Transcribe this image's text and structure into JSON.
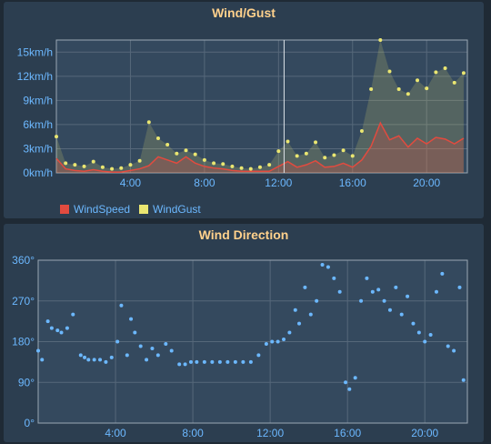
{
  "panels": {
    "wind": {
      "title": "Wind/Gust"
    },
    "direction": {
      "title": "Wind Direction"
    }
  },
  "colors": {
    "speed": "#e24b3f",
    "gust": "#eae671",
    "direction": "#6cb8ff",
    "axis_text": "#6cb8ff",
    "title": "#ffd18c"
  },
  "chart_data": [
    {
      "type": "line",
      "title": "Wind/Gust",
      "x_ticks": [
        "4:00",
        "8:00",
        "12:00",
        "16:00",
        "20:00"
      ],
      "y_ticks": [
        "0km/h",
        "3km/h",
        "6km/h",
        "9km/h",
        "12km/h",
        "15km/h"
      ],
      "xlim": [
        0,
        22.2
      ],
      "ylim": [
        0,
        16.5
      ],
      "grid": true,
      "legend": "bottom-left",
      "cursor_hour": 12.3,
      "series": [
        {
          "name": "WindSpeed",
          "kind": "area-line",
          "x": [
            0,
            0.5,
            1,
            1.5,
            2,
            2.5,
            3,
            3.5,
            4,
            4.5,
            5,
            5.5,
            6,
            6.5,
            7,
            7.5,
            8,
            8.5,
            9,
            9.5,
            10,
            10.5,
            11,
            11.5,
            12,
            12.5,
            13,
            13.5,
            14,
            14.5,
            15,
            15.5,
            16,
            16.5,
            17,
            17.5,
            18,
            18.5,
            19,
            19.5,
            20,
            20.5,
            21,
            21.5,
            22
          ],
          "values": [
            1.8,
            0.5,
            0.3,
            0.2,
            0.4,
            0.2,
            0.1,
            0.1,
            0.3,
            0.5,
            0.9,
            2.0,
            1.6,
            1.2,
            2.0,
            1.2,
            0.8,
            0.6,
            0.5,
            0.3,
            0.2,
            0.2,
            0.2,
            0.2,
            0.8,
            1.4,
            0.7,
            1.0,
            1.5,
            0.7,
            0.8,
            1.2,
            0.7,
            1.6,
            3.3,
            6.2,
            4.1,
            4.6,
            3.2,
            4.3,
            3.6,
            4.4,
            4.2,
            3.6,
            4.3
          ]
        },
        {
          "name": "WindGust",
          "kind": "area-dots",
          "x": [
            0,
            0.5,
            1,
            1.5,
            2,
            2.5,
            3,
            3.5,
            4,
            4.5,
            5,
            5.5,
            6,
            6.5,
            7,
            7.5,
            8,
            8.5,
            9,
            9.5,
            10,
            10.5,
            11,
            11.5,
            12,
            12.5,
            13,
            13.5,
            14,
            14.5,
            15,
            15.5,
            16,
            16.5,
            17,
            17.5,
            18,
            18.5,
            19,
            19.5,
            20,
            20.5,
            21,
            21.5,
            22
          ],
          "values": [
            4.5,
            1.2,
            1.0,
            0.8,
            1.4,
            0.7,
            0.5,
            0.6,
            1.0,
            1.5,
            6.3,
            4.3,
            3.5,
            2.4,
            2.8,
            2.3,
            1.6,
            1.2,
            1.1,
            0.8,
            0.6,
            0.5,
            0.7,
            1.0,
            2.7,
            3.9,
            2.1,
            2.4,
            3.8,
            1.9,
            2.2,
            2.8,
            2.1,
            5.2,
            10.4,
            16.5,
            12.6,
            10.4,
            9.8,
            11.5,
            10.5,
            12.5,
            13.0,
            11.2,
            12.4
          ]
        }
      ]
    },
    {
      "type": "scatter",
      "title": "Wind Direction",
      "x_ticks": [
        "4:00",
        "8:00",
        "12:00",
        "16:00",
        "20:00"
      ],
      "y_ticks": [
        "0°",
        "90°",
        "180°",
        "270°",
        "360°"
      ],
      "xlim": [
        0,
        22.2
      ],
      "ylim": [
        0,
        360
      ],
      "grid": true,
      "series": [
        {
          "name": "",
          "x": [
            0,
            0.2,
            0.5,
            0.7,
            1,
            1.2,
            1.5,
            1.8,
            2.2,
            2.4,
            2.6,
            2.9,
            3.2,
            3.5,
            3.8,
            4.1,
            4.3,
            4.6,
            4.8,
            5,
            5.3,
            5.6,
            5.9,
            6.2,
            6.6,
            6.9,
            7.3,
            7.6,
            7.9,
            8.2,
            8.6,
            9,
            9.4,
            9.8,
            10.2,
            10.6,
            11,
            11.4,
            11.8,
            12.1,
            12.4,
            12.7,
            13,
            13.3,
            13.5,
            13.8,
            14.1,
            14.4,
            14.7,
            15,
            15.3,
            15.6,
            15.9,
            16.1,
            16.4,
            16.7,
            17,
            17.3,
            17.6,
            17.9,
            18.2,
            18.5,
            18.8,
            19.1,
            19.4,
            19.7,
            20,
            20.3,
            20.6,
            20.9,
            21.2,
            21.5,
            21.8,
            22
          ],
          "values": [
            160,
            140,
            225,
            210,
            205,
            200,
            210,
            240,
            150,
            145,
            140,
            140,
            140,
            135,
            145,
            180,
            260,
            150,
            230,
            200,
            170,
            140,
            165,
            150,
            175,
            160,
            130,
            130,
            135,
            135,
            135,
            135,
            135,
            135,
            135,
            135,
            135,
            150,
            175,
            180,
            180,
            185,
            200,
            250,
            220,
            300,
            240,
            270,
            350,
            345,
            320,
            290,
            90,
            75,
            100,
            270,
            320,
            290,
            295,
            270,
            250,
            300,
            240,
            280,
            220,
            200,
            180,
            195,
            290,
            330,
            170,
            160,
            300,
            95
          ]
        }
      ]
    }
  ]
}
